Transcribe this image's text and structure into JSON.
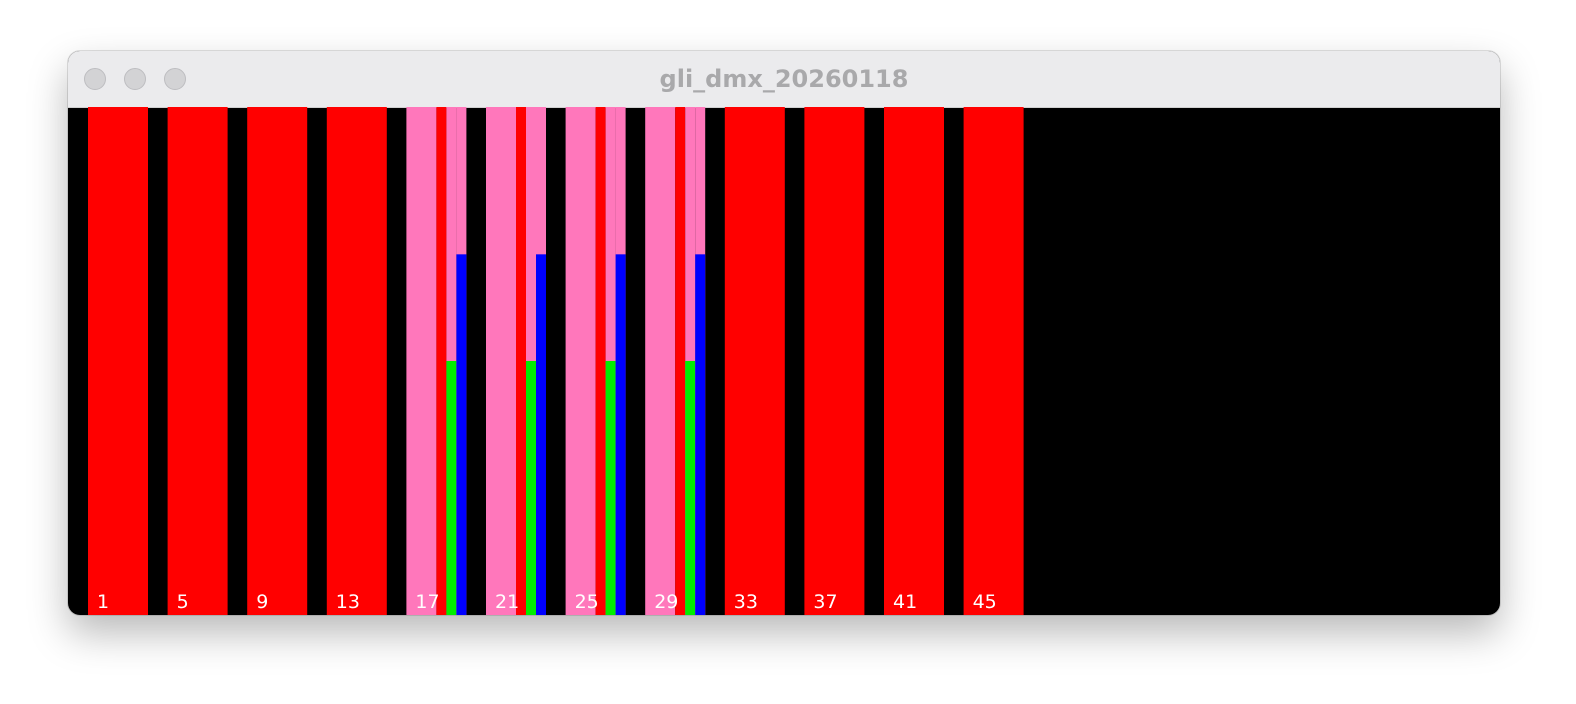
{
  "window": {
    "title": "gli_dmx_20260118"
  },
  "chart_data": {
    "type": "channels",
    "ylim": [
      0,
      100
    ],
    "groups": [
      {
        "label": "1",
        "columns": [
          {
            "color": "#ff0000",
            "value": 100
          }
        ]
      },
      {
        "label": "5",
        "columns": [
          {
            "color": "#ff0000",
            "value": 100
          }
        ]
      },
      {
        "label": "9",
        "columns": [
          {
            "color": "#ff0000",
            "value": 100
          }
        ]
      },
      {
        "label": "13",
        "columns": [
          {
            "color": "#ff0000",
            "value": 100
          }
        ]
      },
      {
        "label": "17",
        "columns": [
          {
            "color": "#ff77bb",
            "value": 100
          },
          {
            "color": "#ff0000",
            "value": 100
          },
          {
            "color": "#00ee00",
            "value": 50,
            "background": "#ff77bb"
          },
          {
            "color": "#0000ff",
            "value": 71,
            "background": "#ff77bb"
          }
        ]
      },
      {
        "label": "21",
        "columns": [
          {
            "color": "#ff77bb",
            "value": 100
          },
          {
            "color": "#ff0000",
            "value": 100
          },
          {
            "color": "#00ee00",
            "value": 50,
            "background": "#ff77bb"
          },
          {
            "color": "#0000ff",
            "value": 71,
            "background": "#ff77bb"
          }
        ]
      },
      {
        "label": "25",
        "columns": [
          {
            "color": "#ff77bb",
            "value": 100
          },
          {
            "color": "#ff0000",
            "value": 100
          },
          {
            "color": "#00ee00",
            "value": 50,
            "background": "#ff77bb"
          },
          {
            "color": "#0000ff",
            "value": 71,
            "background": "#ff77bb"
          }
        ]
      },
      {
        "label": "29",
        "columns": [
          {
            "color": "#ff77bb",
            "value": 100
          },
          {
            "color": "#ff0000",
            "value": 100
          },
          {
            "color": "#00ee00",
            "value": 50,
            "background": "#ff77bb"
          },
          {
            "color": "#0000ff",
            "value": 71,
            "background": "#ff77bb"
          }
        ]
      },
      {
        "label": "33",
        "columns": [
          {
            "color": "#ff0000",
            "value": 100
          }
        ]
      },
      {
        "label": "37",
        "columns": [
          {
            "color": "#ff0000",
            "value": 100
          }
        ]
      },
      {
        "label": "41",
        "columns": [
          {
            "color": "#ff0000",
            "value": 100
          }
        ]
      },
      {
        "label": "45",
        "columns": [
          {
            "color": "#ff0000",
            "value": 100
          }
        ]
      }
    ]
  }
}
